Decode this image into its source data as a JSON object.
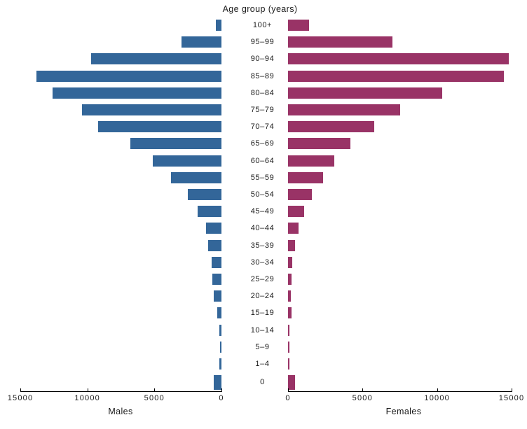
{
  "chart_data": {
    "type": "bar",
    "variant": "population-pyramid",
    "title": "Age group (years)",
    "left_axis_label": "Males",
    "right_axis_label": "Females",
    "categories": [
      "100+",
      "95–99",
      "90–94",
      "85–89",
      "80–84",
      "75–79",
      "70–74",
      "65–69",
      "60–64",
      "55–59",
      "50–54",
      "45–49",
      "40–44",
      "35–39",
      "30–34",
      "25–29",
      "20–24",
      "15–19",
      "10–14",
      "5–9",
      "1–4",
      "0"
    ],
    "series": [
      {
        "name": "Males",
        "side": "left",
        "color": "#336699",
        "values": [
          400,
          3000,
          9700,
          13800,
          12600,
          10400,
          9200,
          6800,
          5100,
          3750,
          2500,
          1800,
          1150,
          1000,
          750,
          660,
          600,
          335,
          140,
          90,
          140,
          560
        ]
      },
      {
        "name": "Females",
        "side": "right",
        "color": "#993366",
        "values": [
          1400,
          7000,
          14800,
          14500,
          10350,
          7500,
          5800,
          4200,
          3100,
          2350,
          1600,
          1070,
          700,
          470,
          280,
          235,
          190,
          220,
          95,
          80,
          80,
          470
        ]
      }
    ],
    "xlim": [
      0,
      15000
    ],
    "x_ticks": [
      0,
      5000,
      10000,
      15000
    ],
    "x_tick_labels_left": [
      "15000",
      "10000",
      "5000",
      "0"
    ],
    "x_tick_labels_right": [
      "0",
      "5000",
      "10000",
      "15000"
    ],
    "grid": false,
    "legend": false
  },
  "colors": {
    "male": "#336699",
    "female": "#993366",
    "axis": "#000000",
    "text": "#1a1a1a"
  }
}
